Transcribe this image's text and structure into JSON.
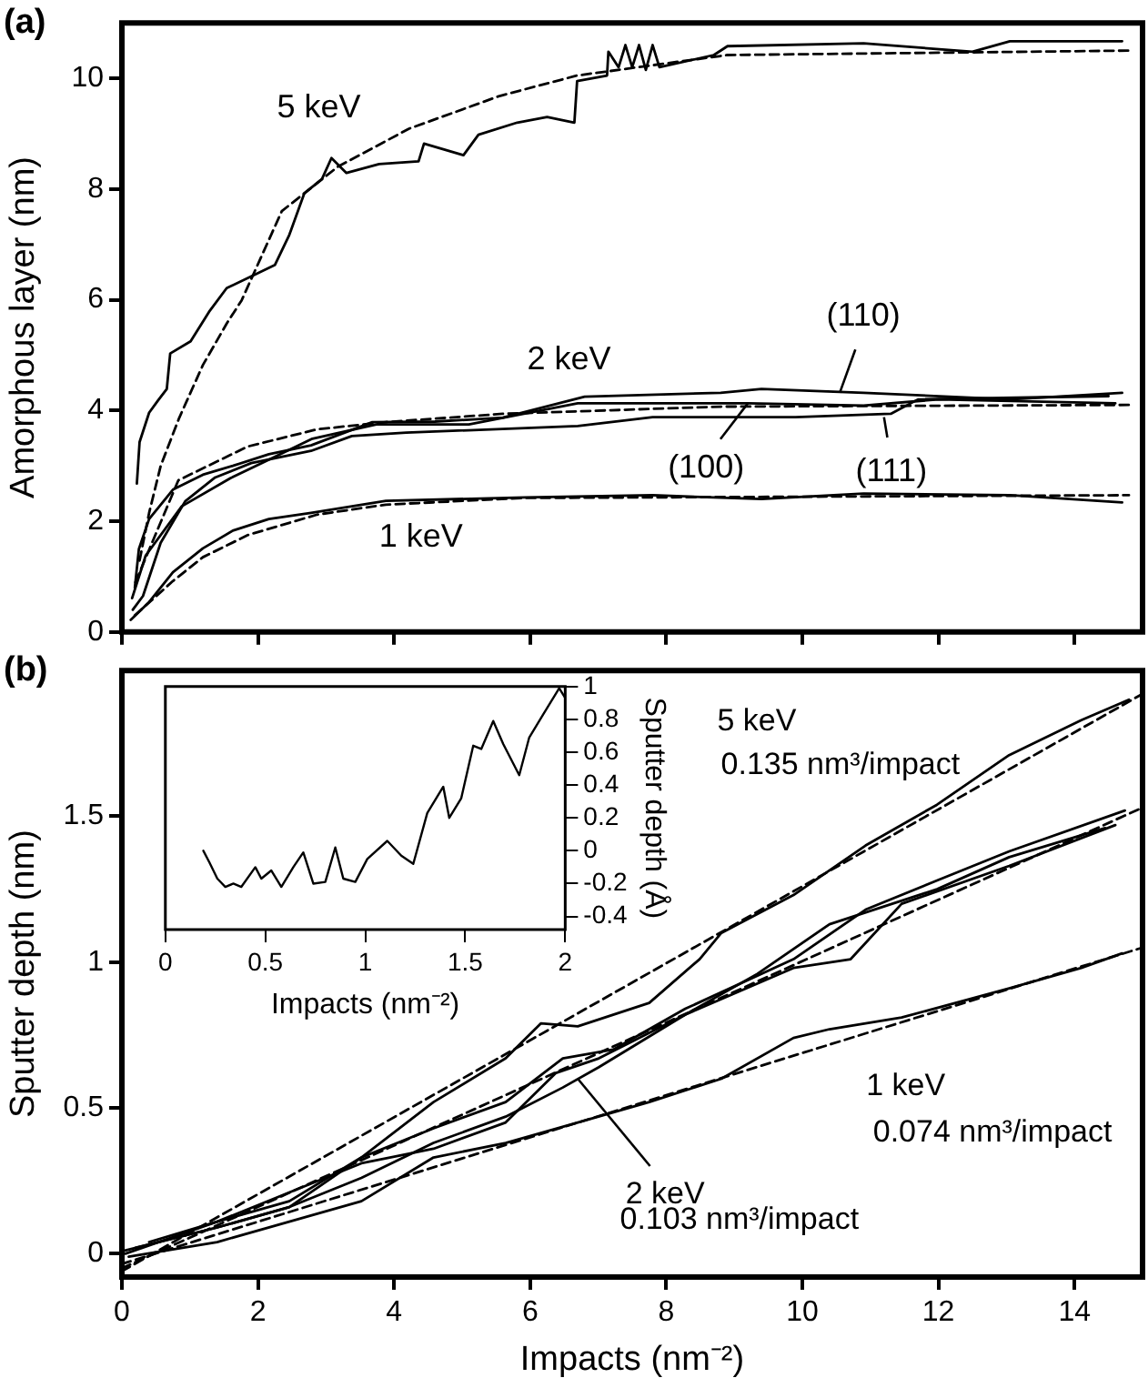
{
  "chart_data": [
    {
      "type": "line",
      "title": "(a)",
      "ylabel": "Amorphous layer (nm)",
      "xlim": [
        0,
        15
      ],
      "xticks": [
        0,
        2,
        4,
        6,
        8,
        10,
        12,
        14
      ],
      "ylim": [
        0,
        11
      ],
      "yticks": [
        0,
        2,
        4,
        6,
        8,
        10
      ],
      "tick_labels": "y",
      "marker": "none",
      "series": [
        {
          "color": "#000000",
          "x": [
            0.22,
            0.26,
            0.4,
            0.53,
            0.66,
            0.71,
            1.01,
            1.28,
            1.54,
            1.98,
            2.25,
            2.46,
            2.68,
            2.94,
            3.08,
            3.3,
            3.78,
            4.36,
            4.44,
            5.02,
            5.24,
            5.81,
            6.25,
            6.65,
            6.69,
            7.13,
            7.15,
            7.3,
            7.4,
            7.5,
            7.6,
            7.7,
            7.8,
            7.9,
            8.7,
            8.9,
            10.9,
            12.5,
            13.05,
            14.7
          ],
          "values": [
            2.68,
            3.43,
            3.96,
            4.18,
            4.39,
            5.03,
            5.25,
            5.78,
            6.21,
            6.47,
            6.63,
            7.17,
            7.92,
            8.18,
            8.56,
            8.29,
            8.45,
            8.5,
            8.82,
            8.61,
            8.98,
            9.2,
            9.3,
            9.2,
            9.95,
            10.05,
            10.48,
            10.2,
            10.6,
            10.2,
            10.6,
            10.15,
            10.6,
            10.2,
            10.42,
            10.58,
            10.63,
            10.48,
            10.67,
            10.67
          ]
        },
        {
          "color": "#000000",
          "line_style": "dashed",
          "x": [
            0.26,
            0.4,
            0.57,
            0.84,
            1.19,
            1.54,
            1.76,
            2.35,
            3.17,
            4.22,
            5.55,
            6.69,
            8.9,
            14.8
          ],
          "values": [
            1.29,
            2.15,
            3.0,
            3.86,
            4.82,
            5.57,
            5.99,
            7.6,
            8.4,
            9.09,
            9.68,
            10.05,
            10.42,
            10.5
          ]
        },
        {
          "color": "#000000",
          "x": [
            0.19,
            0.25,
            0.4,
            0.75,
            1.19,
            1.63,
            2.16,
            2.78,
            3.68,
            4.6,
            5.6,
            6.8,
            8.8,
            9.4,
            10.9,
            13.05,
            14.7
          ],
          "values": [
            0.8,
            1.5,
            2.04,
            2.57,
            2.84,
            3.0,
            3.21,
            3.37,
            3.79,
            3.8,
            3.87,
            4.25,
            4.32,
            4.39,
            4.32,
            4.2,
            4.32
          ]
        },
        {
          "color": "#000000",
          "x": [
            0.15,
            0.35,
            0.88,
            1.6,
            2.8,
            3.74,
            5.1,
            6.7,
            9.2,
            10.9,
            12.0,
            14.6
          ],
          "values": [
            0.61,
            1.38,
            2.27,
            2.78,
            3.49,
            3.75,
            3.75,
            4.13,
            4.13,
            4.09,
            4.2,
            4.13
          ]
        },
        {
          "color": "#000000",
          "x": [
            0.16,
            0.31,
            0.57,
            0.93,
            1.37,
            1.9,
            2.78,
            3.38,
            4.18,
            6.7,
            7.8,
            9.9,
            11.3,
            11.7,
            14.5
          ],
          "values": [
            0.4,
            0.65,
            1.61,
            2.36,
            2.79,
            3.05,
            3.27,
            3.54,
            3.6,
            3.72,
            3.88,
            3.88,
            3.94,
            4.2,
            4.26
          ]
        },
        {
          "color": "#000000",
          "line_style": "dashed",
          "x": [
            0.2,
            0.83,
            1.85,
            2.87,
            3.88,
            5.6,
            8.8,
            14.8
          ],
          "values": [
            0.9,
            2.74,
            3.35,
            3.66,
            3.79,
            3.94,
            4.07,
            4.1
          ]
        },
        {
          "color": "#000000",
          "x": [
            0.13,
            0.4,
            0.75,
            1.19,
            1.63,
            2.16,
            2.78,
            3.88,
            5.92,
            7.8,
            9.4,
            10.9,
            13.05,
            14.7
          ],
          "values": [
            0.22,
            0.54,
            1.08,
            1.51,
            1.83,
            2.04,
            2.15,
            2.37,
            2.43,
            2.47,
            2.4,
            2.5,
            2.47,
            2.34
          ]
        },
        {
          "color": "#000000",
          "line_style": "dashed",
          "x": [
            0.19,
            0.75,
            1.19,
            1.85,
            2.87,
            3.88,
            5.9,
            14.8
          ],
          "values": [
            0.3,
            0.92,
            1.35,
            1.75,
            2.12,
            2.3,
            2.42,
            2.47
          ]
        }
      ],
      "annotations": [
        "5 keV",
        "2 keV",
        "1 keV",
        {
          "text": "(110)",
          "x": 10.55,
          "y": 4.32
        },
        {
          "text": "(100)",
          "x": 9.2,
          "y": 4.13
        },
        {
          "text": "(111)",
          "x": 11.2,
          "y": 3.88
        }
      ]
    },
    {
      "type": "line",
      "title": "(b)",
      "xlabel": "Impacts (nm⁻²)",
      "ylabel": "Sputter depth (nm)",
      "xlim": [
        0,
        15
      ],
      "xticks": [
        0,
        2,
        4,
        6,
        8,
        10,
        12,
        14
      ],
      "ylim": [
        -0.08,
        2.0
      ],
      "yticks": [
        0,
        0.5,
        1,
        1.5
      ],
      "marker": "none",
      "series": [
        {
          "color": "#000000",
          "x": [
            0.03,
            1.4,
            2.46,
            3.52,
            4.58,
            5.64,
            6.16,
            6.7,
            7.75,
            8.49,
            8.81,
            9.87,
            10.93,
            11.98,
            13.04,
            14.1,
            14.8
          ],
          "values": [
            0.01,
            0.09,
            0.16,
            0.33,
            0.52,
            0.67,
            0.79,
            0.78,
            0.86,
            1.01,
            1.1,
            1.23,
            1.4,
            1.54,
            1.71,
            1.83,
            1.9
          ]
        },
        {
          "color": "#000000",
          "line_style": "dashed",
          "x": [
            0,
            15
          ],
          "values": [
            -0.06,
            1.92
          ]
        },
        {
          "color": "#000000",
          "x": [
            0.05,
            1.4,
            2.46,
            3.52,
            4.58,
            5.64,
            6.48,
            7.22,
            8.28,
            9.87,
            10.93,
            11.98,
            13.04,
            14.74
          ],
          "values": [
            0,
            0.11,
            0.18,
            0.33,
            0.43,
            0.52,
            0.67,
            0.7,
            0.84,
            1.01,
            1.18,
            1.28,
            1.38,
            1.52
          ]
        },
        {
          "color": "#000000",
          "x": [
            0.2,
            1.4,
            2.46,
            3.52,
            4.58,
            5.64,
            6.48,
            7.01,
            8.28,
            9.87,
            10.71,
            11.46,
            13.04,
            14.6
          ],
          "values": [
            0.02,
            0.09,
            0.16,
            0.26,
            0.38,
            0.47,
            0.57,
            0.64,
            0.82,
            0.98,
            1.01,
            1.2,
            1.33,
            1.47
          ]
        },
        {
          "color": "#000000",
          "x": [
            0.4,
            1.4,
            2.46,
            3.52,
            4.58,
            5.64,
            6.38,
            7.01,
            8.28,
            9.34,
            10.4,
            11.98,
            13.04,
            14.45
          ],
          "values": [
            0.04,
            0.11,
            0.21,
            0.31,
            0.36,
            0.45,
            0.62,
            0.67,
            0.82,
            0.96,
            1.13,
            1.25,
            1.36,
            1.46
          ]
        },
        {
          "color": "#000000",
          "line_style": "dashed",
          "x": [
            0,
            15
          ],
          "values": [
            -0.05,
            1.53
          ]
        },
        {
          "color": "#000000",
          "x": [
            0.1,
            1.4,
            2.46,
            3.52,
            4.58,
            5.64,
            6.7,
            7.75,
            8.81,
            9.87,
            10.4,
            11.46,
            13.04,
            14.1,
            14.7
          ],
          "values": [
            -0.01,
            0.04,
            0.11,
            0.18,
            0.33,
            0.38,
            0.45,
            0.52,
            0.6,
            0.74,
            0.77,
            0.81,
            0.91,
            0.98,
            1.03
          ]
        },
        {
          "color": "#000000",
          "line_style": "dashed",
          "x": [
            0,
            15
          ],
          "values": [
            -0.035,
            1.05
          ]
        }
      ],
      "annotations": [
        "5 keV",
        "0.135 nm³/impact",
        "1 keV",
        "0.074 nm³/impact",
        {
          "text": "2 keV",
          "x": 6.7,
          "y": 0.6
        },
        "0.103 nm³/impact"
      ]
    },
    {
      "type": "line",
      "xlabel": "Impacts (nm⁻²)",
      "y2label": "Sputter depth (Å)",
      "xlim": [
        0,
        2
      ],
      "xticks": [
        0,
        0.5,
        1,
        1.5,
        2
      ],
      "y2lim": [
        -0.48,
        1.0
      ],
      "y2ticks": [
        -0.4,
        -0.2,
        0,
        0.2,
        0.4,
        0.6,
        0.8,
        1
      ],
      "marker": "none",
      "series": [
        {
          "color": "#000000",
          "axis": "y2",
          "x": [
            0.19,
            0.22,
            0.26,
            0.3,
            0.34,
            0.38,
            0.45,
            0.48,
            0.53,
            0.58,
            0.64,
            0.69,
            0.74,
            0.8,
            0.85,
            0.89,
            0.95,
            1.01,
            1.11,
            1.18,
            1.24,
            1.31,
            1.39,
            1.42,
            1.48,
            1.54,
            1.58,
            1.64,
            1.69,
            1.77,
            1.82,
            1.89,
            1.97,
            2.0
          ],
          "values": [
            0,
            -0.07,
            -0.17,
            -0.22,
            -0.2,
            -0.22,
            -0.1,
            -0.17,
            -0.12,
            -0.22,
            -0.1,
            -0.01,
            -0.2,
            -0.19,
            0.02,
            -0.17,
            -0.19,
            -0.05,
            0.06,
            -0.03,
            -0.08,
            0.23,
            0.39,
            0.2,
            0.32,
            0.64,
            0.62,
            0.79,
            0.65,
            0.46,
            0.69,
            0.83,
            0.99,
            0.93
          ]
        }
      ]
    }
  ]
}
